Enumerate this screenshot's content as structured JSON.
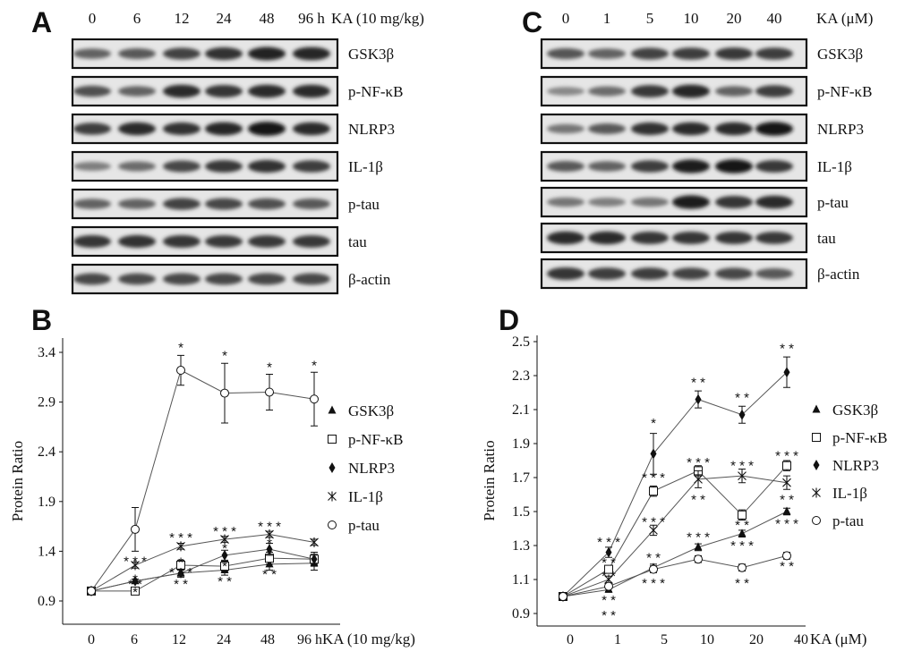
{
  "panels": {
    "A": {
      "letter": "A",
      "lanes": [
        "0",
        "6",
        "12",
        "24",
        "48",
        "96 h"
      ],
      "treatment": "KA (10 mg/kg)",
      "proteins": [
        "GSK3β",
        "p-NF-κB",
        "NLRP3",
        "IL-1β",
        "p-tau",
        "tau",
        "β-actin"
      ],
      "band_intensity": [
        [
          0.55,
          0.6,
          0.72,
          0.82,
          0.9,
          0.88
        ],
        [
          0.65,
          0.55,
          0.85,
          0.8,
          0.85,
          0.85
        ],
        [
          0.75,
          0.85,
          0.82,
          0.88,
          0.98,
          0.85
        ],
        [
          0.4,
          0.5,
          0.7,
          0.78,
          0.82,
          0.75
        ],
        [
          0.55,
          0.55,
          0.72,
          0.7,
          0.65,
          0.6
        ],
        [
          0.8,
          0.82,
          0.8,
          0.78,
          0.78,
          0.78
        ],
        [
          0.7,
          0.68,
          0.7,
          0.7,
          0.7,
          0.7
        ]
      ]
    },
    "C": {
      "letter": "C",
      "lanes": [
        "0",
        "1",
        "5",
        "10",
        "20",
        "40"
      ],
      "treatment": "KA (μM)",
      "proteins": [
        "GSK3β",
        "p-NF-κB",
        "NLRP3",
        "IL-1β",
        "p-tau",
        "tau",
        "β-actin"
      ],
      "band_intensity": [
        [
          0.62,
          0.55,
          0.72,
          0.75,
          0.78,
          0.75
        ],
        [
          0.35,
          0.5,
          0.78,
          0.88,
          0.55,
          0.75
        ],
        [
          0.45,
          0.6,
          0.82,
          0.85,
          0.85,
          0.95
        ],
        [
          0.6,
          0.55,
          0.75,
          0.92,
          0.95,
          0.78
        ],
        [
          0.45,
          0.4,
          0.45,
          0.92,
          0.8,
          0.85
        ],
        [
          0.85,
          0.85,
          0.8,
          0.8,
          0.8,
          0.78
        ],
        [
          0.8,
          0.75,
          0.75,
          0.72,
          0.7,
          0.6
        ]
      ]
    },
    "B": {
      "letter": "B"
    },
    "D": {
      "letter": "D"
    }
  },
  "chart_data": [
    {
      "panel": "B",
      "type": "line",
      "categories": [
        "0",
        "6",
        "12",
        "24",
        "48",
        "96 h"
      ],
      "xlabel": "KA (10 mg/kg)",
      "ylabel": "Protein Ratio",
      "yticks": [
        "0.9",
        "1.4",
        "1.9",
        "2.4",
        "2.9",
        "3.4"
      ],
      "ylim": [
        0.9,
        3.4
      ],
      "legend_position": "right",
      "series": [
        {
          "name": "GSK3β",
          "marker": "triangle",
          "values": [
            1.0,
            1.1,
            1.18,
            1.21,
            1.27,
            1.28
          ],
          "err": [
            0,
            0.02,
            0.04,
            0.05,
            0.06,
            0.07
          ]
        },
        {
          "name": "p-NF-κB",
          "marker": "square",
          "values": [
            1.0,
            1.0,
            1.26,
            1.25,
            1.33,
            1.32
          ],
          "err": [
            0,
            0.01,
            0.05,
            0.05,
            0.06,
            0.07
          ]
        },
        {
          "name": "NLRP3",
          "marker": "diamond",
          "values": [
            1.0,
            1.1,
            1.18,
            1.36,
            1.42,
            1.32
          ],
          "err": [
            0,
            0.02,
            0.04,
            0.05,
            0.06,
            0.05
          ]
        },
        {
          "name": "IL-1β",
          "marker": "star",
          "values": [
            1.0,
            1.26,
            1.45,
            1.52,
            1.57,
            1.49
          ],
          "err": [
            0,
            0.03,
            0.03,
            0.03,
            0.03,
            0.03
          ]
        },
        {
          "name": "p-tau",
          "marker": "circle",
          "values": [
            1.0,
            1.62,
            3.22,
            2.99,
            3.0,
            2.93
          ],
          "err": [
            0,
            0.22,
            0.15,
            0.3,
            0.18,
            0.27
          ]
        }
      ],
      "annotations": [
        {
          "at": "12",
          "value": 3.45,
          "text": "*"
        },
        {
          "at": "24",
          "value": 3.37,
          "text": "*"
        },
        {
          "at": "48",
          "value": 3.25,
          "text": "*"
        },
        {
          "at": "96 h",
          "value": 3.27,
          "text": "*"
        },
        {
          "at": "6",
          "value": 1.3,
          "text": "* * *"
        },
        {
          "at": "6",
          "value": 1.07,
          "text": "* *"
        },
        {
          "at": "6",
          "value": 1.12,
          "text": "*"
        },
        {
          "at": "6",
          "value": 0.99,
          "text": "*"
        },
        {
          "at": "12",
          "value": 1.54,
          "text": "* * *"
        },
        {
          "at": "12",
          "value": 1.29,
          "text": "*"
        },
        {
          "at": "12",
          "value": 1.19,
          "text": "* * *"
        },
        {
          "at": "12",
          "value": 1.07,
          "text": "* *"
        },
        {
          "at": "24",
          "value": 1.6,
          "text": "* * *"
        },
        {
          "at": "24",
          "value": 1.43,
          "text": "*"
        },
        {
          "at": "24",
          "value": 1.25,
          "text": "*"
        },
        {
          "at": "24",
          "value": 1.1,
          "text": "* *"
        },
        {
          "at": "48",
          "value": 1.65,
          "text": "* * *"
        },
        {
          "at": "48",
          "value": 1.48,
          "text": "*"
        },
        {
          "at": "48",
          "value": 1.37,
          "text": "*"
        },
        {
          "at": "48",
          "value": 1.17,
          "text": "* *"
        },
        {
          "at": "96 h",
          "value": 1.25,
          "text": "*"
        }
      ]
    },
    {
      "panel": "D",
      "type": "line",
      "categories": [
        "0",
        "1",
        "5",
        "10",
        "20",
        "40"
      ],
      "xlabel": "KA (μM)",
      "ylabel": "Protein Ratio",
      "yticks": [
        "0.9",
        "1.1",
        "1.3",
        "1.5",
        "1.7",
        "1.9",
        "2.1",
        "2.3",
        "2.5"
      ],
      "ylim": [
        0.9,
        2.5
      ],
      "legend_position": "right",
      "series": [
        {
          "name": "GSK3β",
          "marker": "triangle",
          "values": [
            1.0,
            1.04,
            1.17,
            1.29,
            1.37,
            1.5
          ],
          "err": [
            0,
            0.01,
            0.02,
            0.02,
            0.02,
            0.02
          ]
        },
        {
          "name": "p-NF-κB",
          "marker": "square",
          "values": [
            1.0,
            1.16,
            1.62,
            1.74,
            1.48,
            1.77
          ],
          "err": [
            0,
            0.02,
            0.03,
            0.03,
            0.03,
            0.03
          ]
        },
        {
          "name": "NLRP3",
          "marker": "diamond",
          "values": [
            1.0,
            1.26,
            1.84,
            2.16,
            2.07,
            2.32
          ],
          "err": [
            0,
            0.03,
            0.12,
            0.05,
            0.05,
            0.09
          ]
        },
        {
          "name": "IL-1β",
          "marker": "star",
          "values": [
            1.0,
            1.1,
            1.39,
            1.69,
            1.71,
            1.67
          ],
          "err": [
            0,
            0.02,
            0.03,
            0.05,
            0.04,
            0.04
          ]
        },
        {
          "name": "p-tau",
          "marker": "circle",
          "values": [
            1.0,
            1.06,
            1.16,
            1.22,
            1.17,
            1.24
          ],
          "err": [
            0,
            0.01,
            0.02,
            0.02,
            0.02,
            0.02
          ]
        }
      ],
      "annotations": [
        {
          "at": "5",
          "value": 2.02,
          "text": "*"
        },
        {
          "at": "10",
          "value": 2.26,
          "text": "* *"
        },
        {
          "at": "20",
          "value": 2.17,
          "text": "* *"
        },
        {
          "at": "40",
          "value": 2.46,
          "text": "* *"
        },
        {
          "at": "1",
          "value": 1.32,
          "text": "* * *"
        },
        {
          "at": "1",
          "value": 1.2,
          "text": "* *"
        },
        {
          "at": "1",
          "value": 1.12,
          "text": "* *"
        },
        {
          "at": "1",
          "value": 0.98,
          "text": "* *"
        },
        {
          "at": "1",
          "value": 0.89,
          "text": "* *"
        },
        {
          "at": "5",
          "value": 1.7,
          "text": "* * *"
        },
        {
          "at": "5",
          "value": 1.44,
          "text": "* * *"
        },
        {
          "at": "5",
          "value": 1.23,
          "text": "* *"
        },
        {
          "at": "5",
          "value": 1.08,
          "text": "* * *"
        },
        {
          "at": "10",
          "value": 1.79,
          "text": "* * *"
        },
        {
          "at": "10",
          "value": 1.57,
          "text": "* *"
        },
        {
          "at": "10",
          "value": 1.35,
          "text": "* * *"
        },
        {
          "at": "20",
          "value": 1.77,
          "text": "* * *"
        },
        {
          "at": "20",
          "value": 1.42,
          "text": "* *"
        },
        {
          "at": "20",
          "value": 1.3,
          "text": "* * *"
        },
        {
          "at": "20",
          "value": 1.08,
          "text": "* *"
        },
        {
          "at": "40",
          "value": 1.83,
          "text": "* * *"
        },
        {
          "at": "40",
          "value": 1.57,
          "text": "* *"
        },
        {
          "at": "40",
          "value": 1.43,
          "text": "* * *"
        },
        {
          "at": "40",
          "value": 1.18,
          "text": "* *"
        }
      ]
    }
  ]
}
